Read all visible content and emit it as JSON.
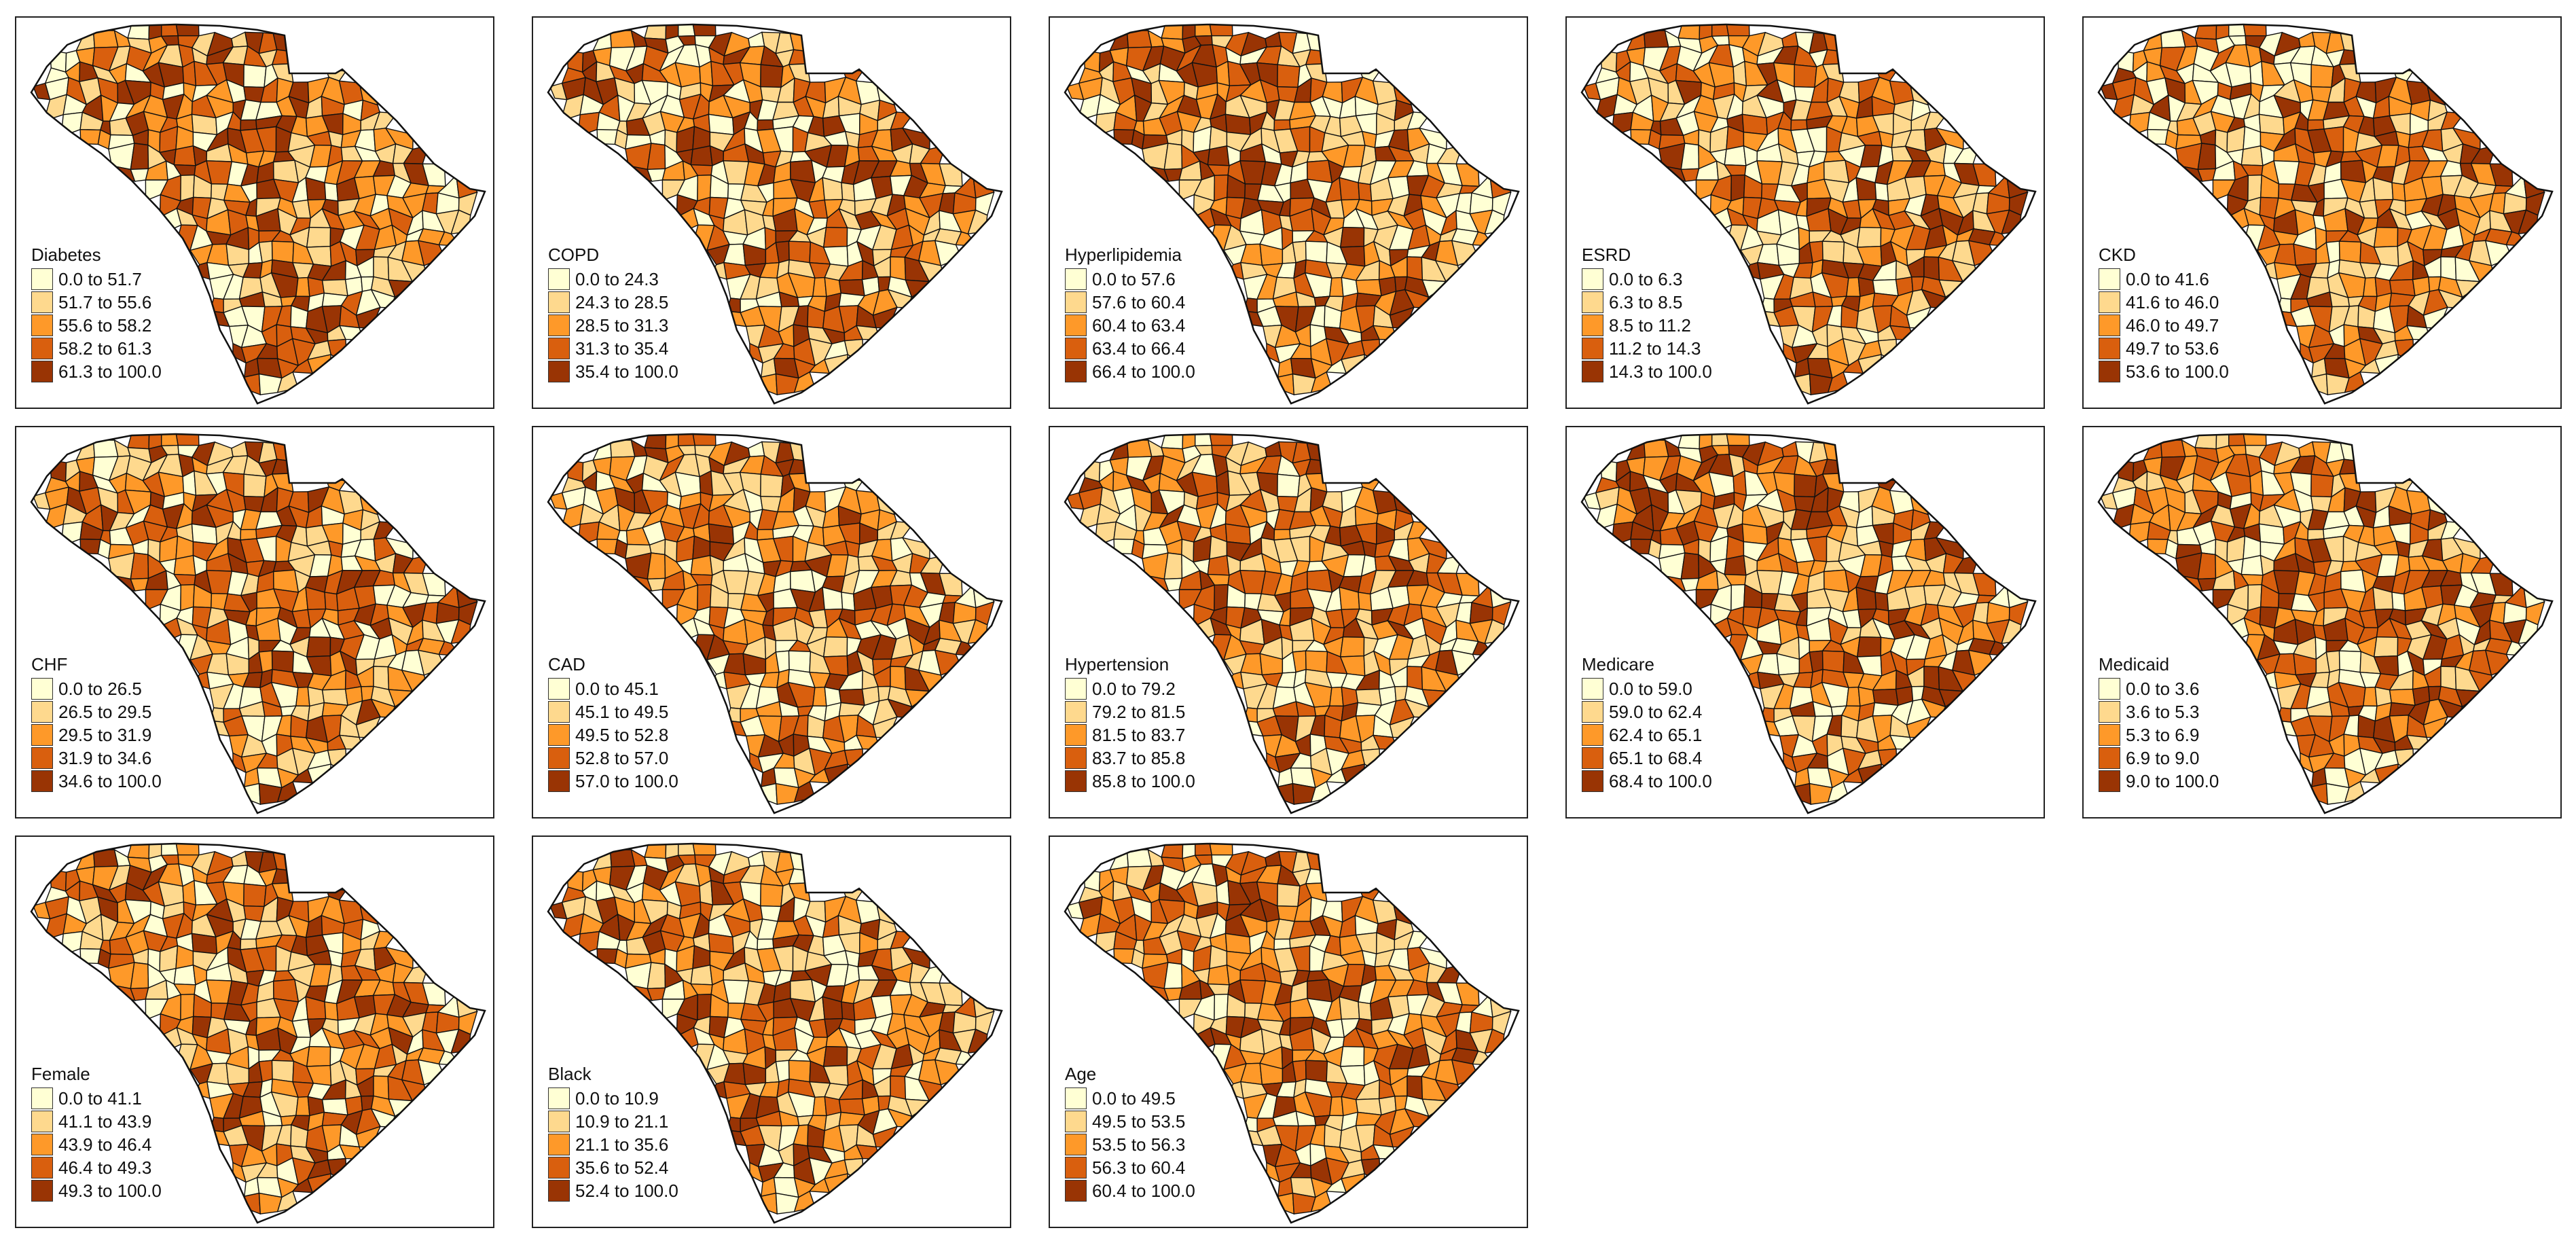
{
  "palette": [
    "#FFFFD4",
    "#FED98E",
    "#FE9929",
    "#D95F0E",
    "#993404"
  ],
  "outline_color": "#111111",
  "maps": [
    {
      "title": "Diabetes",
      "legend": [
        "0.0 to 51.7",
        "51.7 to 55.6",
        "55.6 to 58.2",
        "58.2 to 61.3",
        "61.3 to 100.0"
      ]
    },
    {
      "title": "COPD",
      "legend": [
        "0.0 to 24.3",
        "24.3 to 28.5",
        "28.5 to 31.3",
        "31.3 to 35.4",
        "35.4 to 100.0"
      ]
    },
    {
      "title": "Hyperlipidemia",
      "legend": [
        "0.0 to 57.6",
        "57.6 to 60.4",
        "60.4 to 63.4",
        "63.4 to 66.4",
        "66.4 to 100.0"
      ]
    },
    {
      "title": "ESRD",
      "legend": [
        "0.0 to 6.3",
        "6.3 to 8.5",
        "8.5 to 11.2",
        "11.2 to 14.3",
        "14.3 to 100.0"
      ]
    },
    {
      "title": "CKD",
      "legend": [
        "0.0 to 41.6",
        "41.6 to 46.0",
        "46.0 to 49.7",
        "49.7 to 53.6",
        "53.6 to 100.0"
      ]
    },
    {
      "title": "CHF",
      "legend": [
        "0.0 to 26.5",
        "26.5 to 29.5",
        "29.5 to 31.9",
        "31.9 to 34.6",
        "34.6 to 100.0"
      ]
    },
    {
      "title": "CAD",
      "legend": [
        "0.0 to 45.1",
        "45.1 to 49.5",
        "49.5 to 52.8",
        "52.8 to 57.0",
        "57.0 to 100.0"
      ]
    },
    {
      "title": "Hypertension",
      "legend": [
        "0.0 to 79.2",
        "79.2 to 81.5",
        "81.5 to 83.7",
        "83.7 to 85.8",
        "85.8 to 100.0"
      ]
    },
    {
      "title": "Medicare",
      "legend": [
        "0.0 to 59.0",
        "59.0 to 62.4",
        "62.4 to 65.1",
        "65.1 to 68.4",
        "68.4 to 100.0"
      ]
    },
    {
      "title": "Medicaid",
      "legend": [
        "0.0 to 3.6",
        "3.6 to 5.3",
        "5.3 to 6.9",
        "6.9 to 9.0",
        "9.0 to 100.0"
      ]
    },
    {
      "title": "Female",
      "legend": [
        "0.0 to 41.1",
        "41.1 to 43.9",
        "43.9 to 46.4",
        "46.4 to 49.3",
        "49.3 to 100.0"
      ]
    },
    {
      "title": "Black",
      "legend": [
        "0.0 to 10.9",
        "10.9 to 21.1",
        "21.1 to 35.6",
        "35.6 to 52.4",
        "52.4 to 100.0"
      ]
    },
    {
      "title": "Age",
      "legend": [
        "0.0 to 49.5",
        "49.5 to 53.5",
        "53.5 to 56.3",
        "56.3 to 60.4",
        "60.4 to 100.0"
      ]
    }
  ]
}
